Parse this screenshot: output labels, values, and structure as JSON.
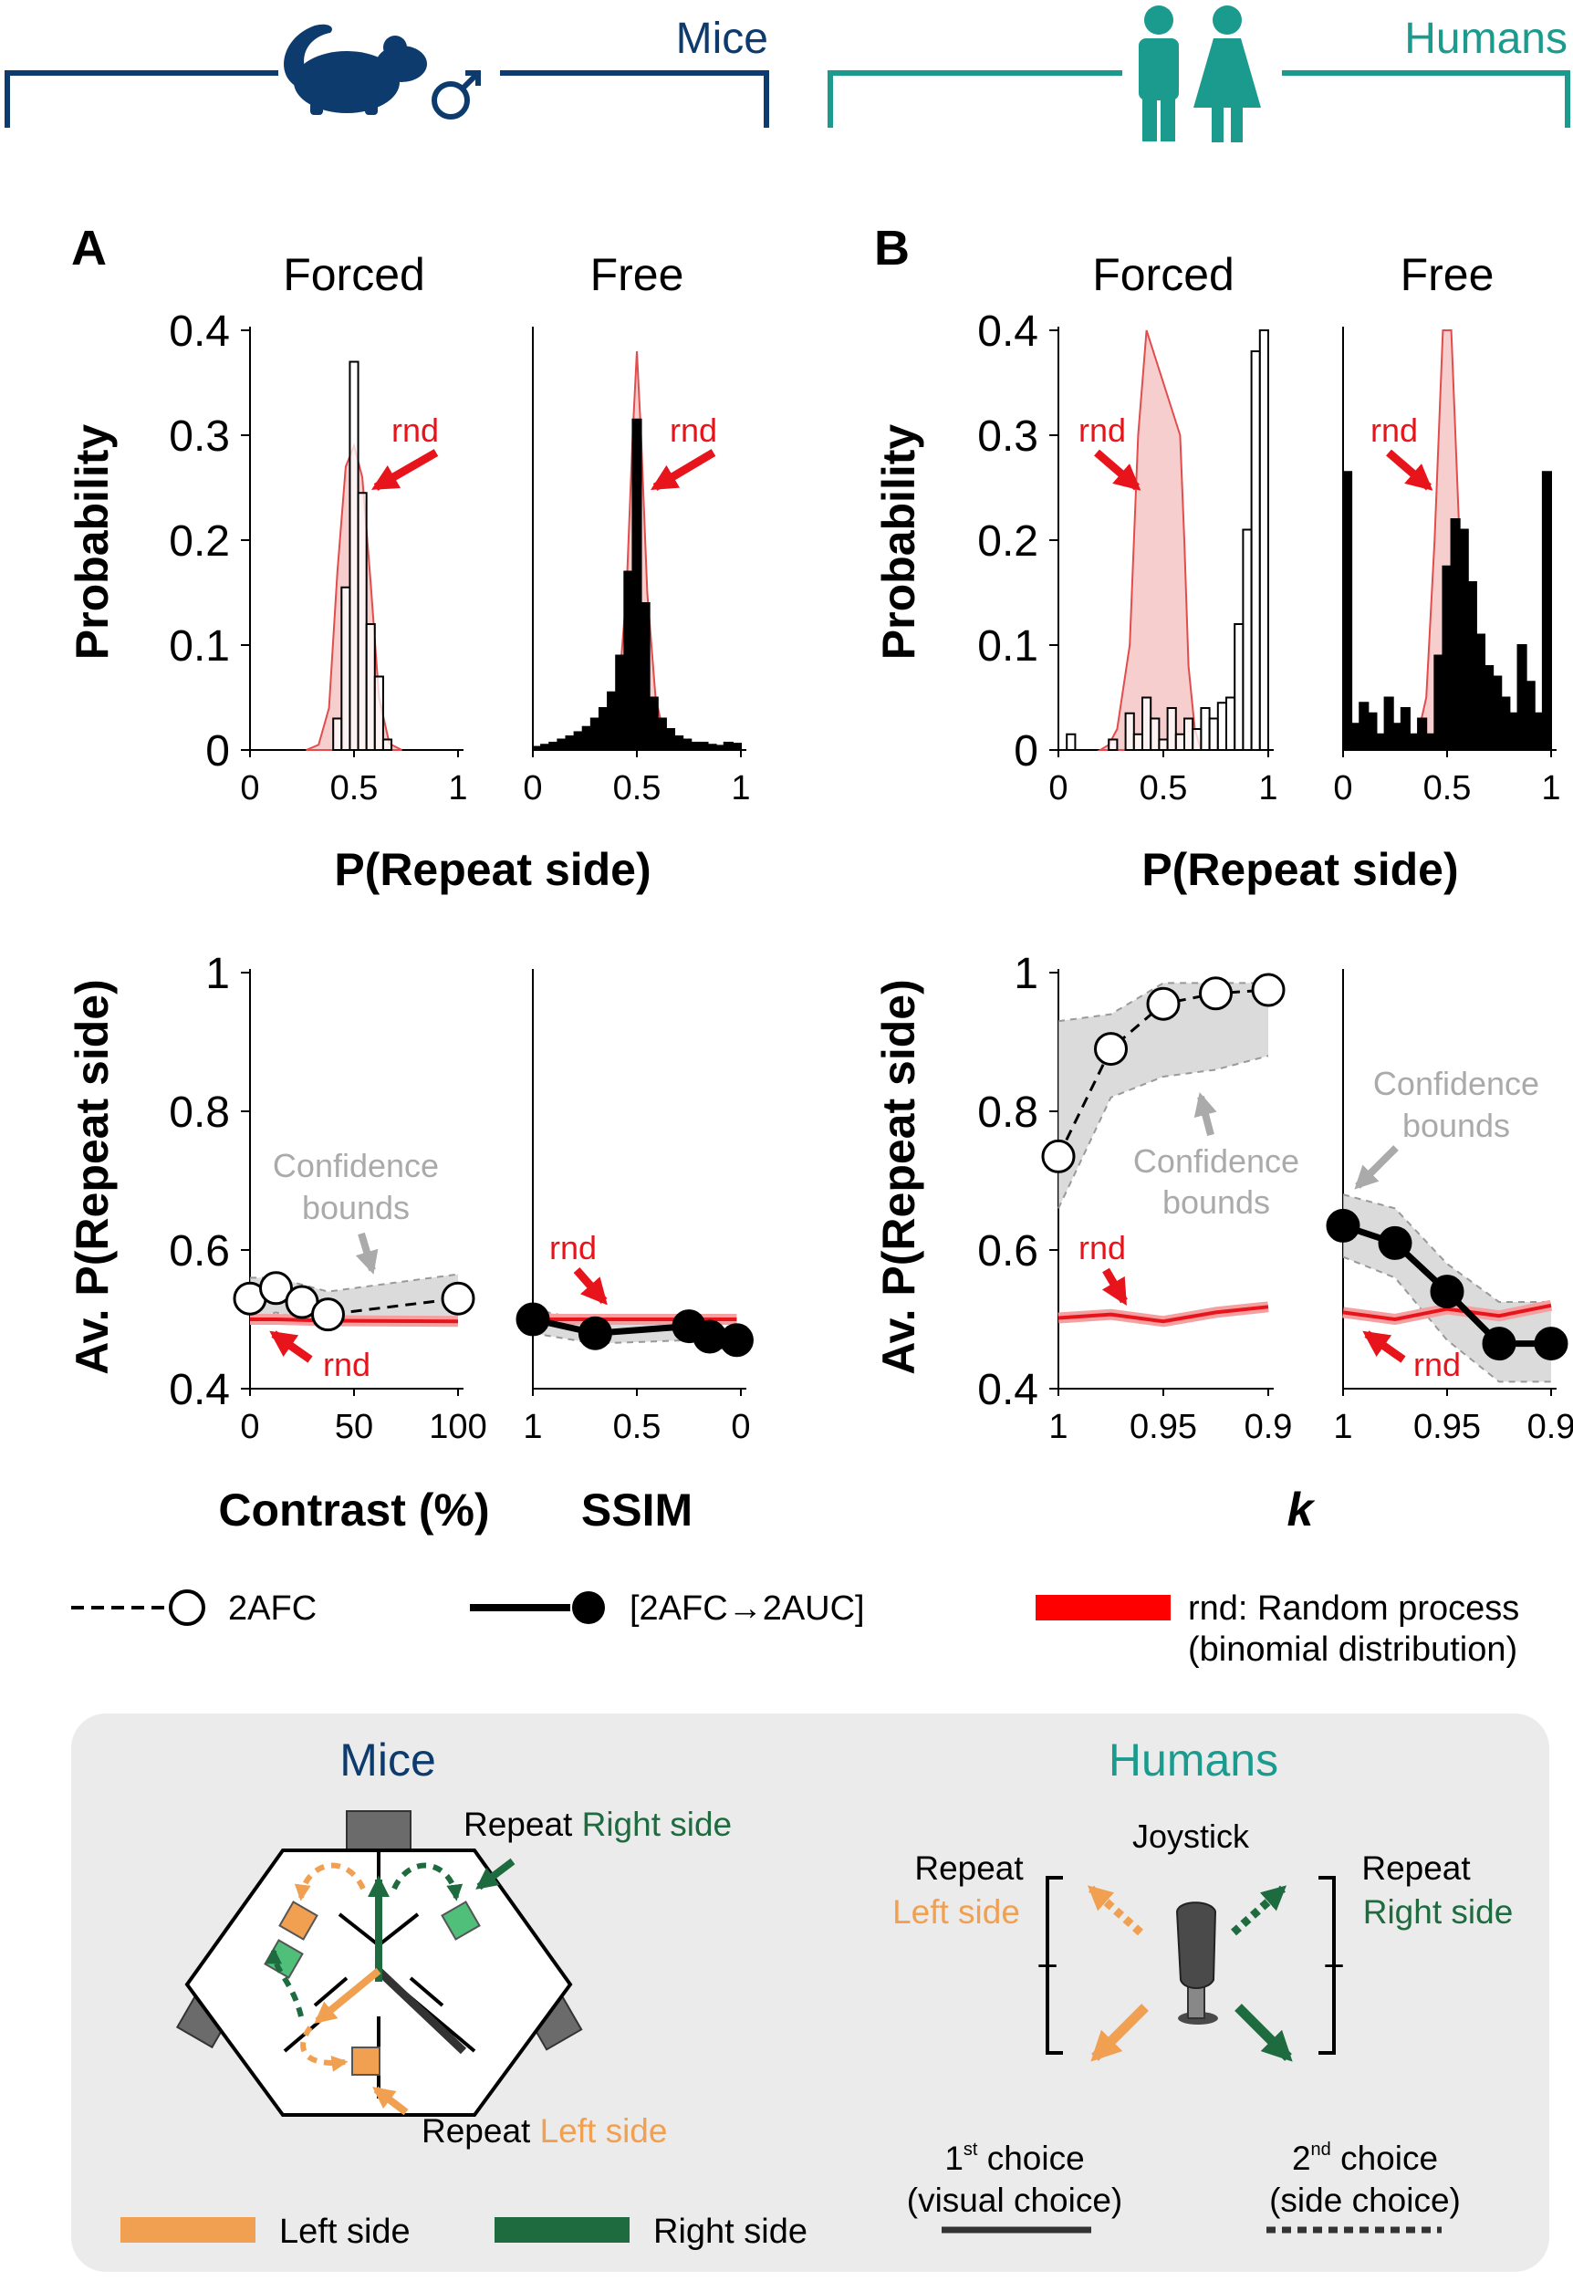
{
  "header": {
    "mice_label": "Mice",
    "humans_label": "Humans",
    "mice_color": "#0d3b6e",
    "humans_color": "#1b9a8e"
  },
  "panels": {
    "a_letter": "A",
    "b_letter": "B"
  },
  "common": {
    "x_label_hist": "P(Repeat side)",
    "y_label_hist": "Probability",
    "y_label_avg": "Av. P(Repeat side)",
    "rnd": "rnd",
    "confidence": "Confidence",
    "bounds": "bounds",
    "x_label_contrast": "Contrast (%)",
    "x_label_ssim": "SSIM",
    "x_label_k": "k"
  },
  "legend": {
    "afc": "2AFC",
    "auc": "[2AFC→2AUC]",
    "rnd_line1": "rnd: Random process",
    "rnd_line2": "(binomial distribution)"
  },
  "bottom_box": {
    "mice_title": "Mice",
    "humans_title": "Humans",
    "repeat": "Repeat",
    "right_side": "Right side",
    "left_side": "Left side",
    "joystick": "Joystick",
    "plus": "+",
    "first": "1",
    "first_sup": "st",
    "second": "2",
    "second_sup": "nd",
    "choice": "choice",
    "visual_choice": "(visual choice)",
    "side_choice": "(side choice)",
    "left_color": "#f0a050",
    "right_color": "#1e6b3f",
    "box_color": "#ebebeb"
  },
  "chart_data": [
    {
      "id": "mice-forced-hist",
      "type": "bar",
      "title": "Forced",
      "xlabel": "P(Repeat side)",
      "ylabel": "Probability",
      "xlim": [
        0,
        1
      ],
      "ylim": [
        0,
        0.4
      ],
      "xticks": [
        "0",
        "0.5",
        "1"
      ],
      "yticks": [
        "0",
        "0.1",
        "0.2",
        "0.3",
        "0.4"
      ],
      "bin_width": 0.04,
      "bins": [
        0.4,
        0.44,
        0.48,
        0.52,
        0.56,
        0.6,
        0.64
      ],
      "values": [
        0.03,
        0.155,
        0.37,
        0.245,
        0.12,
        0.07,
        0.01
      ],
      "bar_fill": "white",
      "rnd_x": [
        0.27,
        0.33,
        0.38,
        0.42,
        0.46,
        0.5,
        0.54,
        0.58,
        0.62,
        0.67,
        0.73
      ],
      "rnd_y": [
        0,
        0.005,
        0.04,
        0.17,
        0.27,
        0.29,
        0.26,
        0.16,
        0.05,
        0.006,
        0
      ]
    },
    {
      "id": "mice-free-hist",
      "type": "bar",
      "title": "Free",
      "xlabel": "P(Repeat side)",
      "ylabel": "",
      "xlim": [
        0,
        1
      ],
      "ylim": [
        0,
        0.4
      ],
      "xticks": [
        "0",
        "0.5",
        "1"
      ],
      "bin_width": 0.04,
      "bins": [
        0.0,
        0.04,
        0.08,
        0.12,
        0.16,
        0.2,
        0.24,
        0.28,
        0.32,
        0.36,
        0.4,
        0.44,
        0.48,
        0.52,
        0.56,
        0.6,
        0.64,
        0.68,
        0.72,
        0.76,
        0.8,
        0.84,
        0.88,
        0.92,
        0.96
      ],
      "values": [
        0.003,
        0.005,
        0.007,
        0.01,
        0.013,
        0.017,
        0.022,
        0.03,
        0.04,
        0.055,
        0.09,
        0.17,
        0.315,
        0.14,
        0.05,
        0.03,
        0.02,
        0.013,
        0.01,
        0.007,
        0.007,
        0.005,
        0.004,
        0.007,
        0.006
      ],
      "bar_fill": "black",
      "rnd_x": [
        0.28,
        0.36,
        0.41,
        0.45,
        0.48,
        0.5,
        0.52,
        0.55,
        0.59,
        0.64,
        0.72
      ],
      "rnd_y": [
        0,
        0.006,
        0.05,
        0.15,
        0.3,
        0.38,
        0.3,
        0.15,
        0.05,
        0.006,
        0
      ]
    },
    {
      "id": "humans-forced-hist",
      "type": "bar",
      "title": "Forced",
      "xlabel": "P(Repeat side)",
      "ylabel": "Probability",
      "xlim": [
        0,
        1
      ],
      "ylim": [
        0,
        0.4
      ],
      "xticks": [
        "0",
        "0.5",
        "1"
      ],
      "yticks": [
        "0",
        "0.1",
        "0.2",
        "0.3",
        "0.4"
      ],
      "bin_width": 0.04,
      "bins": [
        0.04,
        0.24,
        0.32,
        0.36,
        0.4,
        0.44,
        0.48,
        0.52,
        0.56,
        0.6,
        0.64,
        0.68,
        0.72,
        0.76,
        0.8,
        0.84,
        0.88,
        0.92,
        0.96
      ],
      "values": [
        0.015,
        0.01,
        0.035,
        0.015,
        0.05,
        0.03,
        0.01,
        0.04,
        0.015,
        0.03,
        0.02,
        0.04,
        0.03,
        0.045,
        0.05,
        0.12,
        0.21,
        0.38,
        0.4
      ],
      "bar_fill": "white",
      "rnd_x": [
        0.2,
        0.24,
        0.28,
        0.34,
        0.38,
        0.42,
        0.58,
        0.6,
        0.62,
        0.65,
        0.68
      ],
      "rnd_y": [
        0,
        0.005,
        0.02,
        0.1,
        0.3,
        0.4,
        0.3,
        0.2,
        0.08,
        0.02,
        0
      ]
    },
    {
      "id": "humans-free-hist",
      "type": "bar",
      "title": "Free",
      "xlabel": "P(Repeat side)",
      "ylabel": "",
      "xlim": [
        0,
        1
      ],
      "ylim": [
        0,
        0.4
      ],
      "xticks": [
        "0",
        "0.5",
        "1"
      ],
      "bin_width": 0.04,
      "bins": [
        0.0,
        0.04,
        0.08,
        0.12,
        0.16,
        0.2,
        0.24,
        0.28,
        0.32,
        0.36,
        0.4,
        0.44,
        0.48,
        0.52,
        0.56,
        0.6,
        0.64,
        0.68,
        0.72,
        0.76,
        0.8,
        0.84,
        0.88,
        0.92,
        0.96
      ],
      "values": [
        0.265,
        0.025,
        0.045,
        0.035,
        0.015,
        0.05,
        0.025,
        0.04,
        0.015,
        0.03,
        0.015,
        0.09,
        0.175,
        0.22,
        0.21,
        0.16,
        0.11,
        0.08,
        0.07,
        0.05,
        0.035,
        0.1,
        0.065,
        0.035,
        0.265
      ],
      "bar_fill": "black",
      "rnd_x": [
        0.28,
        0.35,
        0.4,
        0.44,
        0.48,
        0.5,
        0.52,
        0.56,
        0.6,
        0.65,
        0.72
      ],
      "rnd_y": [
        0,
        0.006,
        0.05,
        0.2,
        0.4,
        0.4,
        0.4,
        0.2,
        0.05,
        0.006,
        0
      ]
    },
    {
      "id": "mice-contrast-line",
      "type": "line",
      "xlabel": "Contrast (%)",
      "ylabel": "Av. P(Repeat side)",
      "xlim": [
        0,
        100
      ],
      "ylim": [
        0.4,
        1
      ],
      "xticks": [
        "0",
        "50",
        "100"
      ],
      "yticks": [
        "0.4",
        "0.6",
        "0.8",
        "1"
      ],
      "x": [
        0,
        12.5,
        25,
        37.5,
        100
      ],
      "y": [
        0.53,
        0.545,
        0.525,
        0.507,
        0.53
      ],
      "ci_low": [
        0.5,
        0.51,
        0.5,
        0.49,
        0.5
      ],
      "ci_high": [
        0.56,
        0.56,
        0.55,
        0.54,
        0.565
      ],
      "rnd": [
        0.5,
        0.5,
        0.499,
        0.498,
        0.497
      ],
      "style": "dashed-open"
    },
    {
      "id": "mice-ssim-line",
      "type": "line",
      "xlabel": "SSIM",
      "ylabel": "",
      "xlim": [
        1,
        0
      ],
      "ylim": [
        0.4,
        1
      ],
      "xticks": [
        "1",
        "0.5",
        "0"
      ],
      "x": [
        1,
        0.7,
        0.25,
        0.15,
        0.02
      ],
      "y": [
        0.5,
        0.48,
        0.49,
        0.475,
        0.47
      ],
      "ci_low": [
        0.48,
        0.465,
        0.47,
        0.46,
        0.455
      ],
      "ci_high": [
        0.515,
        0.495,
        0.505,
        0.49,
        0.485
      ],
      "rnd": [
        0.5,
        0.5,
        0.5,
        0.5,
        0.5
      ],
      "style": "solid-filled"
    },
    {
      "id": "humans-k-forced-line",
      "type": "line",
      "xlabel": "",
      "ylabel": "Av. P(Repeat side)",
      "xlim": [
        1,
        0.9
      ],
      "ylim": [
        0.4,
        1
      ],
      "xticks": [
        "1",
        "0.95",
        "0.9"
      ],
      "yticks": [
        "0.4",
        "0.6",
        "0.8",
        "1"
      ],
      "x": [
        1,
        0.975,
        0.95,
        0.925,
        0.9
      ],
      "y": [
        0.735,
        0.89,
        0.955,
        0.97,
        0.975
      ],
      "ci_low": [
        0.66,
        0.82,
        0.85,
        0.86,
        0.88
      ],
      "ci_high": [
        0.93,
        0.94,
        0.985,
        0.985,
        0.985
      ],
      "rnd": [
        0.502,
        0.507,
        0.497,
        0.51,
        0.518
      ],
      "style": "dashed-open"
    },
    {
      "id": "humans-k-free-line",
      "type": "line",
      "xlabel": "k",
      "ylabel": "",
      "xlim": [
        1,
        0.9
      ],
      "ylim": [
        0.4,
        1
      ],
      "xticks": [
        "1",
        "0.95",
        "0.9"
      ],
      "x": [
        1,
        0.975,
        0.95,
        0.925,
        0.9
      ],
      "y": [
        0.635,
        0.61,
        0.54,
        0.465,
        0.465
      ],
      "ci_low": [
        0.59,
        0.56,
        0.47,
        0.41,
        0.41
      ],
      "ci_high": [
        0.68,
        0.66,
        0.58,
        0.525,
        0.525
      ],
      "rnd": [
        0.51,
        0.5,
        0.515,
        0.505,
        0.52
      ],
      "style": "solid-filled"
    }
  ]
}
